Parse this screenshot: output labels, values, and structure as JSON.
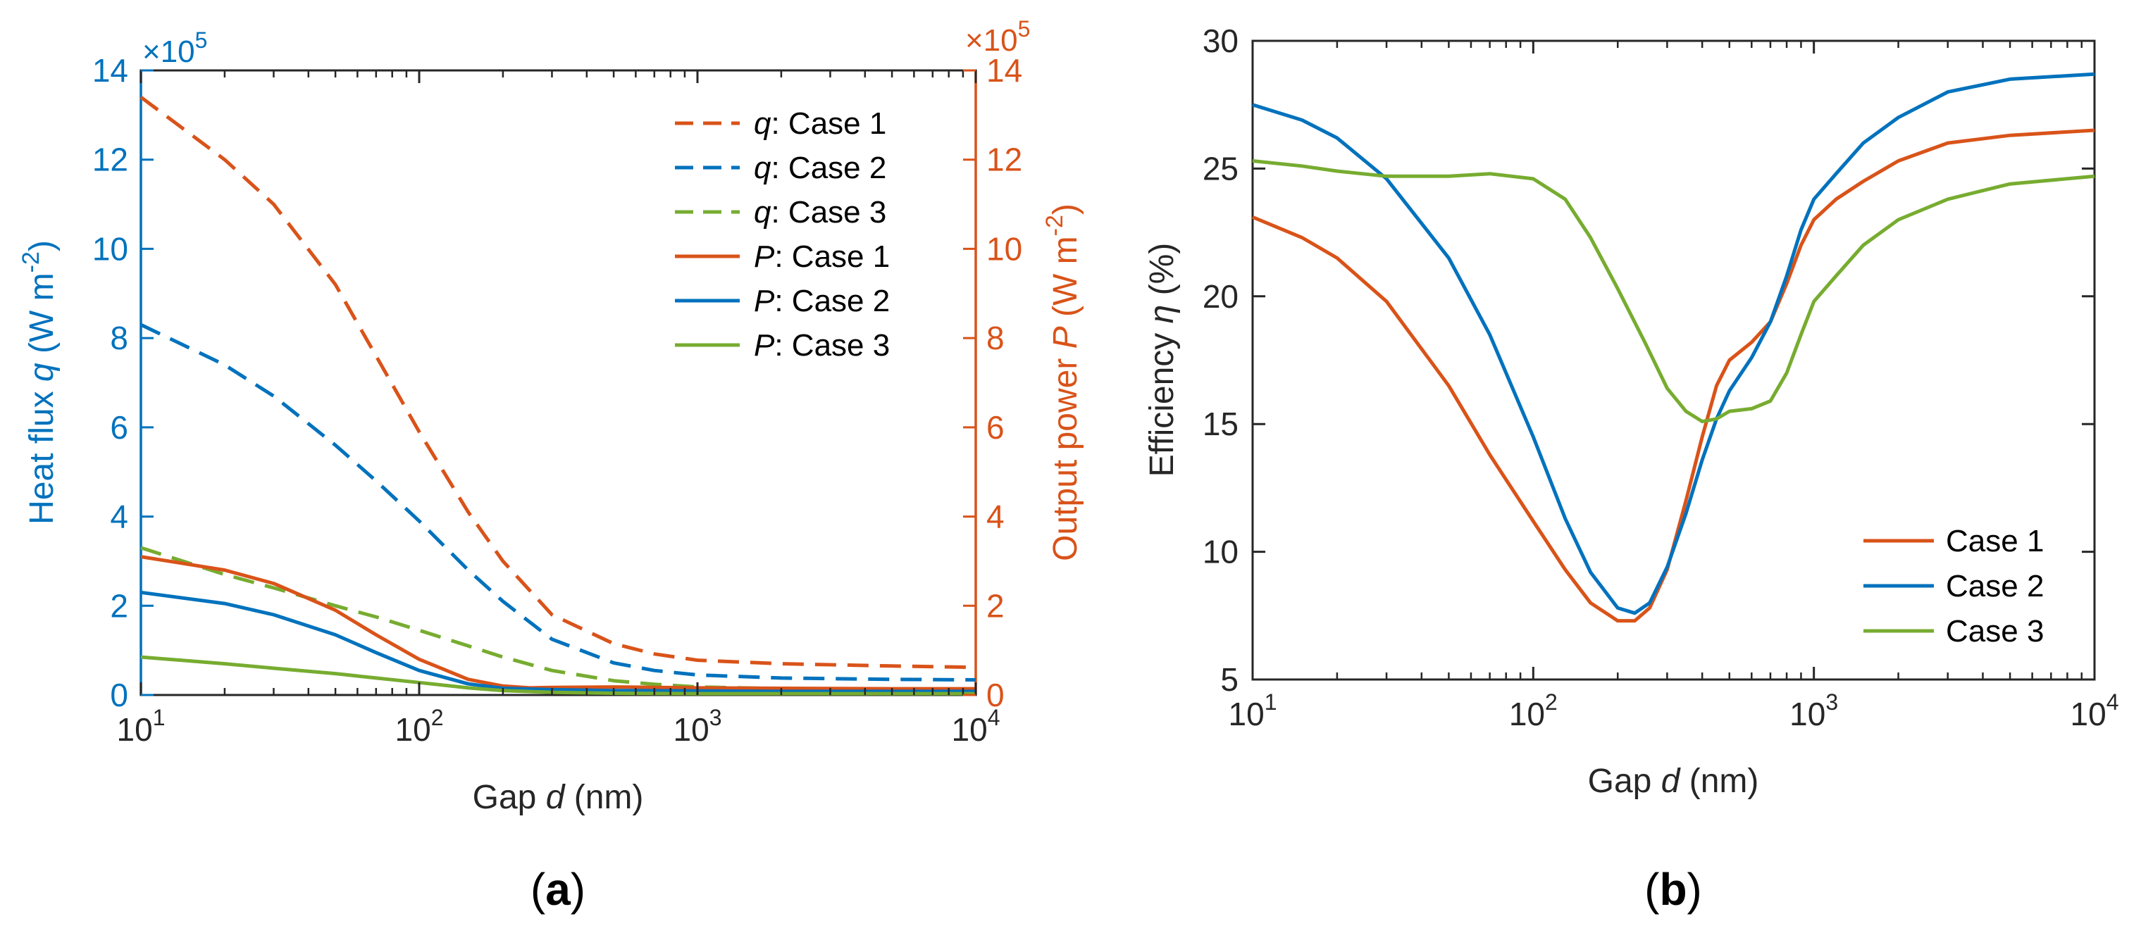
{
  "colors": {
    "case1": "#D95319",
    "case2": "#0072BD",
    "case3": "#77AC30",
    "left_axis": "#0072BD",
    "right_axis": "#D95319",
    "axis": "#262626"
  },
  "chart_data": [
    {
      "panel": "(a)",
      "panel_parts": {
        "open": "(",
        "letter": "a",
        "close": ")"
      },
      "type": "line",
      "xscale": "log",
      "xlabel": {
        "pre": "Gap ",
        "var": "d",
        "post": " (nm)"
      },
      "xlim": [
        10,
        10000
      ],
      "xticks": [
        {
          "base": "10",
          "exp": "1"
        },
        {
          "base": "10",
          "exp": "2"
        },
        {
          "base": "10",
          "exp": "3"
        },
        {
          "base": "10",
          "exp": "4"
        }
      ],
      "ylabel_left": {
        "pre": "Heat flux ",
        "var": "q",
        "post": " (W m",
        "sup": "-2",
        "close": ")"
      },
      "ylabel_right": {
        "pre": "Output power ",
        "var": "P",
        "post": " (W m",
        "sup": "-2",
        "close": ")"
      },
      "ylim_left": [
        0,
        14
      ],
      "ylim_right": [
        0,
        14
      ],
      "yticks": [
        "0",
        "2",
        "4",
        "6",
        "8",
        "10",
        "12",
        "14"
      ],
      "multiplier": {
        "prefix": "×10",
        "exp": "5"
      },
      "legend_position": "top-right",
      "series": [
        {
          "name": "q: Case 1",
          "var": "q",
          "label": ": Case 1",
          "color_key": "case1",
          "dash": true,
          "x": [
            10,
            20,
            30,
            50,
            70,
            100,
            150,
            200,
            300,
            500,
            700,
            1000,
            2000,
            5000,
            10000
          ],
          "y": [
            13.4,
            12.0,
            11.0,
            9.2,
            7.6,
            5.9,
            4.1,
            3.0,
            1.8,
            1.15,
            0.92,
            0.78,
            0.7,
            0.65,
            0.62
          ]
        },
        {
          "name": "q: Case 2",
          "var": "q",
          "label": ": Case 2",
          "color_key": "case2",
          "dash": true,
          "x": [
            10,
            20,
            30,
            50,
            70,
            100,
            150,
            200,
            300,
            500,
            700,
            1000,
            2000,
            5000,
            10000
          ],
          "y": [
            8.3,
            7.4,
            6.7,
            5.6,
            4.8,
            3.9,
            2.8,
            2.1,
            1.25,
            0.72,
            0.55,
            0.45,
            0.38,
            0.35,
            0.34
          ]
        },
        {
          "name": "q: Case 3",
          "var": "q",
          "label": ": Case 3",
          "color_key": "case3",
          "dash": true,
          "x": [
            10,
            20,
            30,
            50,
            70,
            100,
            150,
            200,
            300,
            500,
            700,
            1000,
            2000,
            5000,
            10000
          ],
          "y": [
            3.3,
            2.7,
            2.4,
            2.0,
            1.75,
            1.45,
            1.1,
            0.85,
            0.55,
            0.32,
            0.24,
            0.18,
            0.14,
            0.12,
            0.11
          ]
        },
        {
          "name": "P: Case 1",
          "var": "P",
          "label": ": Case 1",
          "color_key": "case1",
          "dash": false,
          "x": [
            10,
            20,
            30,
            50,
            70,
            100,
            150,
            200,
            250,
            300,
            500,
            1000,
            2000,
            5000,
            10000
          ],
          "y": [
            3.1,
            2.8,
            2.5,
            1.9,
            1.35,
            0.8,
            0.35,
            0.2,
            0.16,
            0.17,
            0.18,
            0.16,
            0.15,
            0.14,
            0.14
          ]
        },
        {
          "name": "P: Case 2",
          "var": "P",
          "label": ": Case 2",
          "color_key": "case2",
          "dash": false,
          "x": [
            10,
            20,
            30,
            50,
            70,
            100,
            150,
            200,
            300,
            500,
            1000,
            2000,
            5000,
            10000
          ],
          "y": [
            2.3,
            2.05,
            1.8,
            1.35,
            0.95,
            0.55,
            0.25,
            0.15,
            0.12,
            0.1,
            0.09,
            0.08,
            0.08,
            0.08
          ]
        },
        {
          "name": "P: Case 3",
          "var": "P",
          "label": ": Case 3",
          "color_key": "case3",
          "dash": false,
          "x": [
            10,
            20,
            30,
            50,
            70,
            100,
            150,
            200,
            300,
            500,
            1000,
            2000,
            5000,
            10000
          ],
          "y": [
            0.85,
            0.7,
            0.6,
            0.48,
            0.38,
            0.28,
            0.16,
            0.1,
            0.06,
            0.04,
            0.03,
            0.03,
            0.03,
            0.03
          ]
        }
      ]
    },
    {
      "panel": "(b)",
      "panel_parts": {
        "open": "(",
        "letter": "b",
        "close": ")"
      },
      "type": "line",
      "xscale": "log",
      "xlabel": {
        "pre": "Gap ",
        "var": "d",
        "post": " (nm)"
      },
      "xlim": [
        10,
        10000
      ],
      "xticks": [
        {
          "base": "10",
          "exp": "1"
        },
        {
          "base": "10",
          "exp": "2"
        },
        {
          "base": "10",
          "exp": "3"
        },
        {
          "base": "10",
          "exp": "4"
        }
      ],
      "ylabel": {
        "pre": "Efficiency ",
        "var": "η",
        "post": " (%)"
      },
      "ylim": [
        5,
        30
      ],
      "yticks": [
        "5",
        "10",
        "15",
        "20",
        "25",
        "30"
      ],
      "legend_position": "bottom-right",
      "series": [
        {
          "name": "Case 1",
          "color_key": "case1",
          "x": [
            10,
            15,
            20,
            30,
            50,
            70,
            100,
            130,
            160,
            200,
            230,
            260,
            300,
            350,
            400,
            450,
            500,
            600,
            700,
            800,
            900,
            1000,
            1200,
            1500,
            2000,
            3000,
            5000,
            10000
          ],
          "y": [
            23.1,
            22.3,
            21.5,
            19.8,
            16.5,
            13.8,
            11.2,
            9.3,
            8.0,
            7.3,
            7.3,
            7.8,
            9.3,
            12.0,
            14.5,
            16.5,
            17.5,
            18.2,
            19.0,
            20.5,
            22.0,
            23.0,
            23.8,
            24.5,
            25.3,
            26.0,
            26.3,
            26.5
          ]
        },
        {
          "name": "Case 2",
          "color_key": "case2",
          "x": [
            10,
            15,
            20,
            30,
            50,
            70,
            100,
            130,
            160,
            200,
            230,
            260,
            300,
            350,
            400,
            450,
            500,
            600,
            700,
            800,
            900,
            1000,
            1200,
            1500,
            2000,
            3000,
            5000,
            10000
          ],
          "y": [
            27.5,
            26.9,
            26.2,
            24.6,
            21.5,
            18.5,
            14.5,
            11.3,
            9.2,
            7.8,
            7.6,
            8.0,
            9.4,
            11.5,
            13.6,
            15.2,
            16.3,
            17.6,
            19.0,
            20.8,
            22.6,
            23.8,
            24.8,
            26.0,
            27.0,
            28.0,
            28.5,
            28.7
          ]
        },
        {
          "name": "Case 3",
          "color_key": "case3",
          "x": [
            10,
            15,
            20,
            30,
            50,
            70,
            100,
            130,
            160,
            200,
            250,
            300,
            350,
            400,
            450,
            500,
            600,
            700,
            800,
            900,
            1000,
            1200,
            1500,
            2000,
            3000,
            5000,
            10000
          ],
          "y": [
            25.3,
            25.1,
            24.9,
            24.7,
            24.7,
            24.8,
            24.6,
            23.8,
            22.3,
            20.3,
            18.2,
            16.4,
            15.5,
            15.1,
            15.2,
            15.5,
            15.6,
            15.9,
            17.0,
            18.5,
            19.8,
            20.8,
            22.0,
            23.0,
            23.8,
            24.4,
            24.7
          ]
        }
      ]
    }
  ]
}
